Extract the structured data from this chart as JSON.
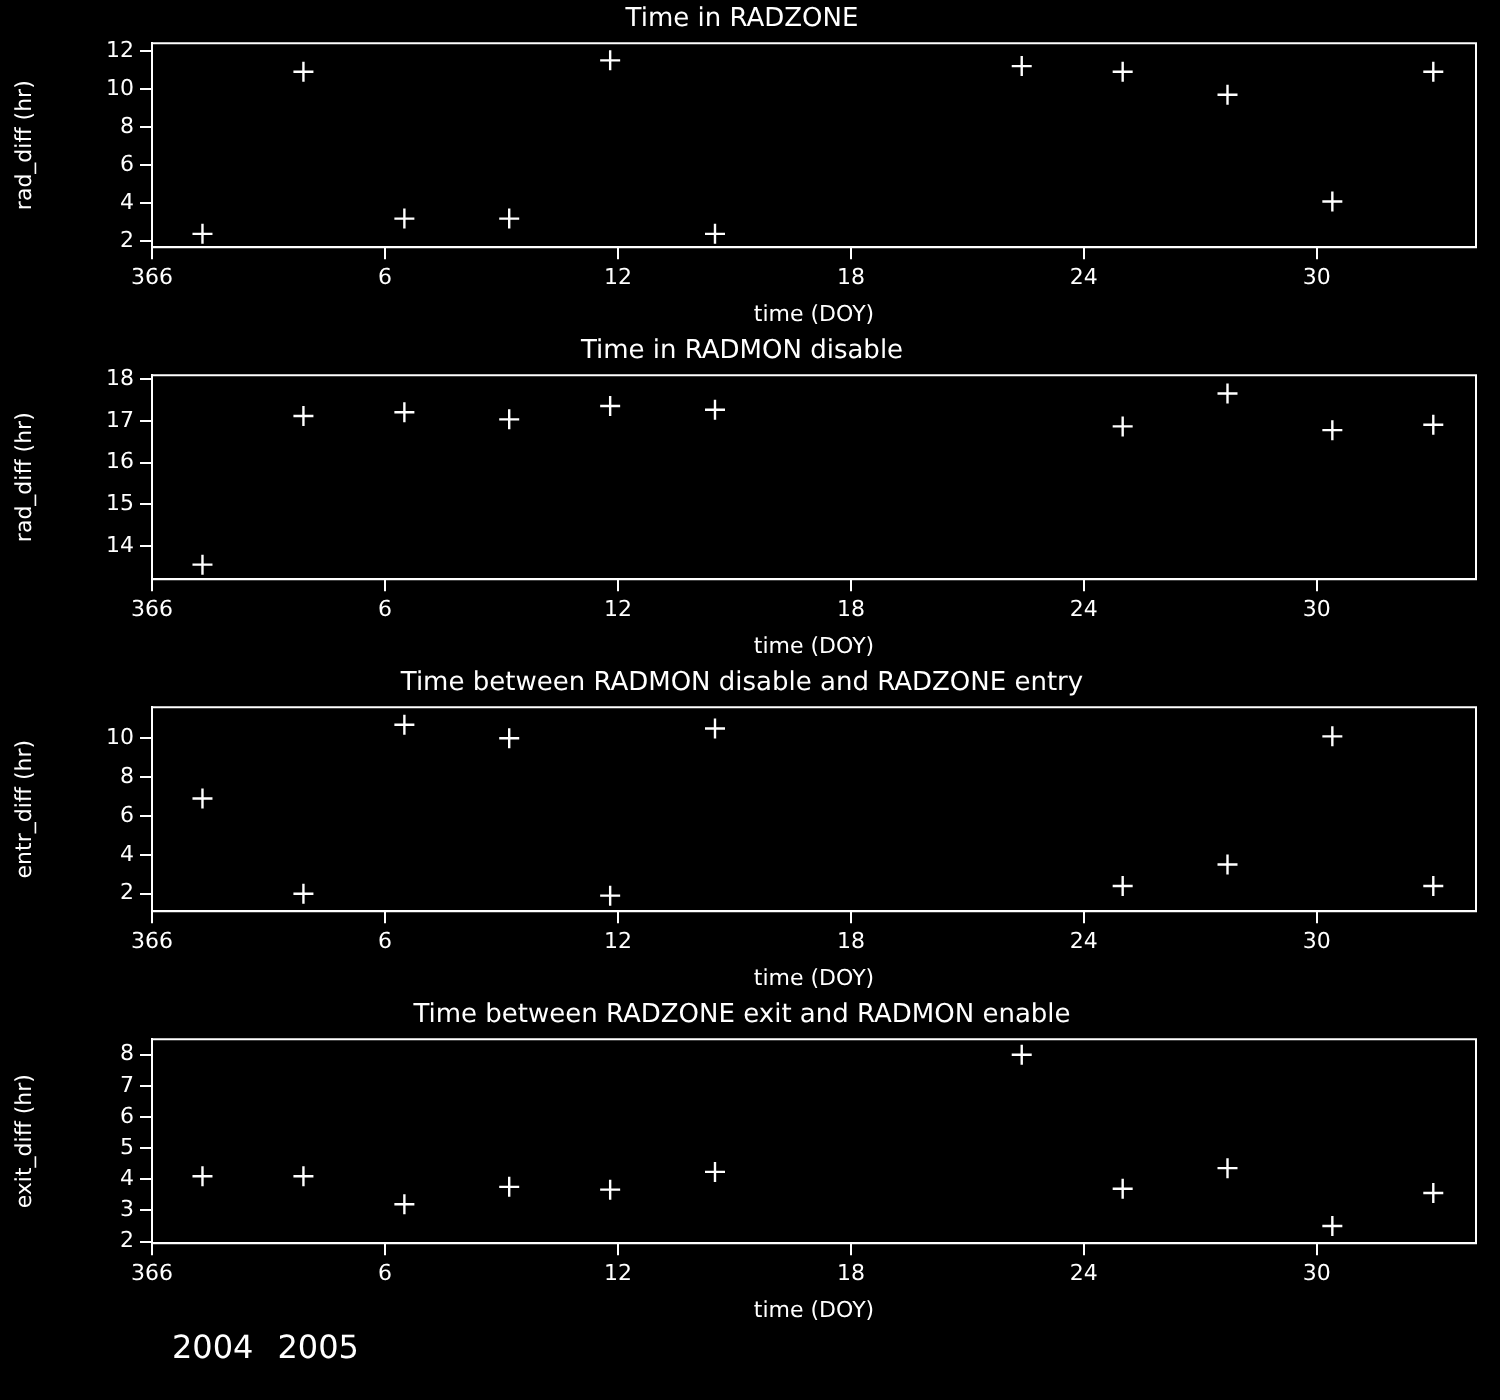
{
  "chart_data": [
    {
      "type": "scatter",
      "title": "Time in RADZONE",
      "xlabel": "time (DOY)",
      "ylabel": "rad_diff (hr)",
      "x": [
        "2005-01-01T07:12",
        "2005-01-03T21:36",
        "2005-01-06T12:00",
        "2005-01-09T04:48",
        "2005-01-11T19:12",
        "2005-01-14T12:00",
        "2005-01-22T09:36",
        "2005-01-25T00:00",
        "2005-01-27T16:48",
        "2005-01-30T09:36",
        "2005-02-02T00:00"
      ],
      "series": [
        {
          "color": "#ffffff",
          "values": [
            2.4,
            10.9,
            3.2,
            3.2,
            11.5,
            2.4,
            11.2,
            10.9,
            9.7,
            4.1,
            10.9
          ]
        }
      ],
      "xlim": [
        "2004-12-31",
        "2005-02-03T02:24"
      ],
      "xticks": [
        {
          "value": "2004-12-31",
          "label": "366"
        },
        {
          "value": "2005-01-06",
          "label": "6"
        },
        {
          "value": "2005-01-12",
          "label": "12"
        },
        {
          "value": "2005-01-18",
          "label": "18"
        },
        {
          "value": "2005-01-24",
          "label": "24"
        },
        {
          "value": "2005-01-30",
          "label": "30"
        }
      ],
      "ylim": [
        1.7,
        12.4
      ],
      "yticks": [
        2,
        4,
        6,
        8,
        10,
        12
      ],
      "marker": "cross",
      "grid": false,
      "legend": false
    },
    {
      "type": "scatter",
      "title": "Time in RADMON disable",
      "xlabel": "time (DOY)",
      "ylabel": "rad_diff (hr)",
      "x": [
        "2005-01-01T07:12",
        "2005-01-03T21:36",
        "2005-01-06T12:00",
        "2005-01-09T04:48",
        "2005-01-11T19:12",
        "2005-01-14T12:00",
        "2005-01-22T09:36",
        "2005-01-25T00:00",
        "2005-01-27T16:48",
        "2005-01-30T09:36",
        "2005-02-02T00:00"
      ],
      "series": [
        {
          "color": "#ffffff",
          "values": [
            13.55,
            17.12,
            17.21,
            17.04,
            17.36,
            17.27,
            null,
            16.87,
            17.66,
            16.78,
            16.91
          ]
        }
      ],
      "xlim": [
        "2004-12-31",
        "2005-02-03T02:24"
      ],
      "xticks": [
        {
          "value": "2004-12-31",
          "label": "366"
        },
        {
          "value": "2005-01-06",
          "label": "6"
        },
        {
          "value": "2005-01-12",
          "label": "12"
        },
        {
          "value": "2005-01-18",
          "label": "18"
        },
        {
          "value": "2005-01-24",
          "label": "24"
        },
        {
          "value": "2005-01-30",
          "label": "30"
        }
      ],
      "ylim": [
        13.2,
        18.1
      ],
      "yticks": [
        14,
        15,
        16,
        17,
        18
      ],
      "marker": "cross",
      "grid": false,
      "legend": false
    },
    {
      "type": "scatter",
      "title": "Time between RADMON disable and RADZONE entry",
      "xlabel": "time (DOY)",
      "ylabel": "entr_diff (hr)",
      "x": [
        "2005-01-01T07:12",
        "2005-01-03T21:36",
        "2005-01-06T12:00",
        "2005-01-09T04:48",
        "2005-01-11T19:12",
        "2005-01-14T12:00",
        "2005-01-22T09:36",
        "2005-01-25T00:00",
        "2005-01-27T16:48",
        "2005-01-30T09:36",
        "2005-02-02T00:00"
      ],
      "series": [
        {
          "color": "#ffffff",
          "values": [
            6.9,
            2.0,
            10.7,
            10.0,
            1.9,
            10.5,
            null,
            2.4,
            3.5,
            10.1,
            2.4
          ]
        }
      ],
      "xlim": [
        "2004-12-31",
        "2005-02-03T02:24"
      ],
      "xticks": [
        {
          "value": "2004-12-31",
          "label": "366"
        },
        {
          "value": "2005-01-06",
          "label": "6"
        },
        {
          "value": "2005-01-12",
          "label": "12"
        },
        {
          "value": "2005-01-18",
          "label": "18"
        },
        {
          "value": "2005-01-24",
          "label": "24"
        },
        {
          "value": "2005-01-30",
          "label": "30"
        }
      ],
      "ylim": [
        1.1,
        11.6
      ],
      "yticks": [
        2,
        4,
        6,
        8,
        10
      ],
      "marker": "cross",
      "grid": false,
      "legend": false
    },
    {
      "type": "scatter",
      "title": "Time between RADZONE exit and RADMON enable",
      "xlabel": "time (DOY)",
      "ylabel": "exit_diff (hr)",
      "x": [
        "2005-01-01T07:12",
        "2005-01-03T21:36",
        "2005-01-06T12:00",
        "2005-01-09T04:48",
        "2005-01-11T19:12",
        "2005-01-14T12:00",
        "2005-01-22T09:36",
        "2005-01-25T00:00",
        "2005-01-27T16:48",
        "2005-01-30T09:36",
        "2005-02-02T00:00"
      ],
      "series": [
        {
          "color": "#ffffff",
          "values": [
            4.1,
            4.1,
            3.2,
            3.76,
            3.67,
            4.24,
            8.0,
            3.7,
            4.36,
            2.5,
            3.56
          ]
        }
      ],
      "xlim": [
        "2004-12-31",
        "2005-02-03T02:24"
      ],
      "xticks": [
        {
          "value": "2004-12-31",
          "label": "366"
        },
        {
          "value": "2005-01-06",
          "label": "6"
        },
        {
          "value": "2005-01-12",
          "label": "12"
        },
        {
          "value": "2005-01-18",
          "label": "18"
        },
        {
          "value": "2005-01-24",
          "label": "24"
        },
        {
          "value": "2005-01-30",
          "label": "30"
        }
      ],
      "ylim": [
        1.95,
        8.5
      ],
      "yticks": [
        2,
        3,
        4,
        5,
        6,
        7,
        8
      ],
      "marker": "cross",
      "grid": false,
      "legend": false,
      "annotations": [
        "2004",
        "2005"
      ]
    }
  ]
}
